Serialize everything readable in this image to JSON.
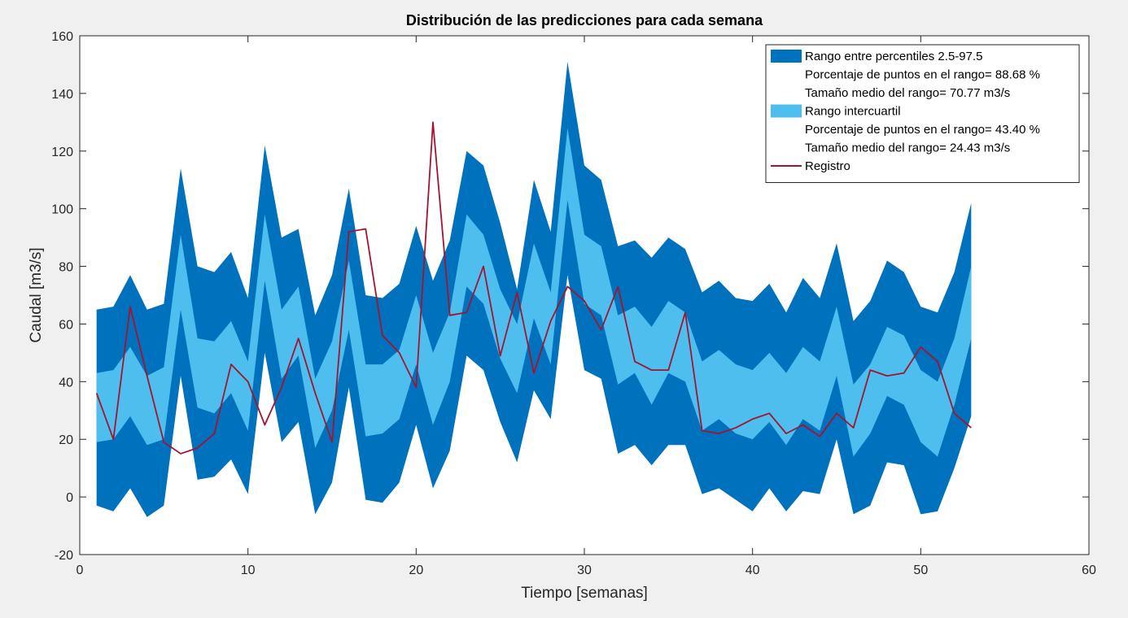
{
  "chart_data": {
    "type": "area",
    "title": "Distribución de las predicciones para cada semana",
    "xlabel": "Tiempo [semanas]",
    "ylabel": "Caudal [m3/s]",
    "xlim": [
      0,
      60
    ],
    "ylim": [
      -20,
      160
    ],
    "xticks": [
      "0",
      "10",
      "20",
      "30",
      "40",
      "50",
      "60"
    ],
    "yticks": [
      "-20",
      "0",
      "20",
      "40",
      "60",
      "80",
      "100",
      "120",
      "140",
      "160"
    ],
    "grid": false,
    "legend_position": "top-right",
    "x": [
      1,
      2,
      3,
      4,
      5,
      6,
      7,
      8,
      9,
      10,
      11,
      12,
      13,
      14,
      15,
      16,
      17,
      18,
      19,
      20,
      21,
      22,
      23,
      24,
      25,
      26,
      27,
      28,
      29,
      30,
      31,
      32,
      33,
      34,
      35,
      36,
      37,
      38,
      39,
      40,
      41,
      42,
      43,
      44,
      45,
      46,
      47,
      48,
      49,
      50,
      51,
      52,
      53
    ],
    "p975": [
      65,
      66,
      77,
      65,
      67,
      114,
      80,
      78,
      85,
      69,
      122,
      90,
      93,
      63,
      77,
      107,
      70,
      69,
      74,
      94,
      75,
      89,
      120,
      115,
      95,
      72,
      110,
      92,
      151,
      115,
      110,
      87,
      89,
      83,
      90,
      86,
      71,
      75,
      69,
      68,
      74,
      64,
      76,
      69,
      88,
      61,
      68,
      82,
      78,
      66,
      64,
      78,
      102
    ],
    "p75": [
      43,
      44,
      52,
      42,
      45,
      91,
      55,
      54,
      61,
      47,
      98,
      65,
      73,
      41,
      54,
      82,
      46,
      46,
      51,
      70,
      50,
      64,
      98,
      91,
      72,
      60,
      88,
      71,
      128,
      91,
      87,
      63,
      66,
      59,
      68,
      64,
      47,
      51,
      46,
      44,
      50,
      43,
      52,
      47,
      66,
      39,
      46,
      59,
      56,
      44,
      40,
      55,
      80
    ],
    "p25": [
      19,
      20,
      28,
      18,
      20,
      65,
      31,
      29,
      36,
      23,
      75,
      41,
      49,
      17,
      30,
      58,
      21,
      22,
      27,
      46,
      25,
      40,
      73,
      67,
      48,
      36,
      62,
      46,
      103,
      67,
      63,
      39,
      43,
      32,
      43,
      40,
      23,
      27,
      22,
      20,
      26,
      18,
      27,
      23,
      42,
      14,
      22,
      35,
      32,
      19,
      14,
      32,
      55
    ],
    "p025": [
      -3,
      -5,
      3,
      -7,
      -3,
      42,
      6,
      7,
      13,
      1,
      50,
      19,
      26,
      -6,
      5,
      38,
      -1,
      -2,
      5,
      25,
      3,
      16,
      49,
      44,
      26,
      12,
      37,
      27,
      77,
      44,
      41,
      15,
      18,
      11,
      18,
      18,
      1,
      3,
      -1,
      -5,
      3,
      -5,
      2,
      1,
      20,
      -6,
      -3,
      12,
      11,
      -6,
      -5,
      10,
      28
    ],
    "registro": [
      36,
      20,
      66,
      42,
      19,
      15,
      17,
      22,
      46,
      40,
      25,
      38,
      55,
      36,
      19,
      92,
      93,
      56,
      50,
      38,
      130,
      63,
      64,
      80,
      49,
      71,
      43,
      61,
      73,
      68,
      58,
      73,
      47,
      44,
      44,
      64,
      23,
      22,
      24,
      27,
      29,
      22,
      25,
      21,
      29,
      24,
      44,
      42,
      43,
      52,
      47,
      29,
      24
    ],
    "series": [
      {
        "name": "Rango entre percentiles 2.5-97.5",
        "color": "#0072bd"
      },
      {
        "name": "Rango intercuartil",
        "color": "#4dbeee"
      },
      {
        "name": "Registro",
        "color": "#a2142f"
      }
    ],
    "legend": [
      {
        "text": "Rango entre percentiles 2.5-97.5",
        "swatch": "#0072bd"
      },
      {
        "text": "Porcentaje de puntos en el rango= 88.68 %",
        "swatch": ""
      },
      {
        "text": "Tamaño medio del rango= 70.77 m3/s",
        "swatch": ""
      },
      {
        "text": "Rango intercuartil",
        "swatch": "#4dbeee"
      },
      {
        "text": "Porcentaje de puntos en el rango= 43.40 %",
        "swatch": ""
      },
      {
        "text": "Tamaño medio del rango= 24.43 m3/s",
        "swatch": ""
      },
      {
        "text": "Registro",
        "swatch": "line:#a2142f"
      }
    ]
  }
}
